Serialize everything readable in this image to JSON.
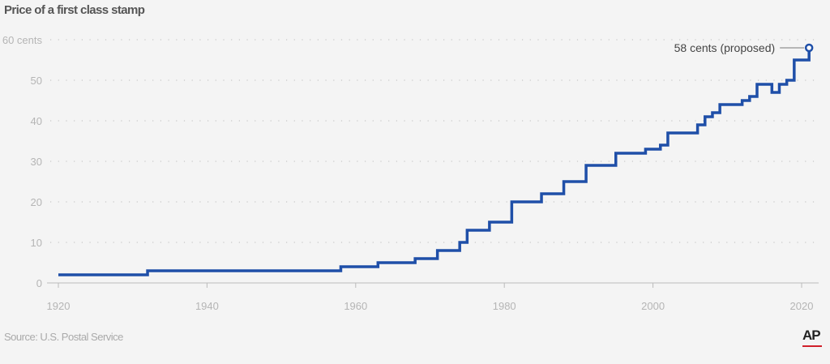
{
  "chart_data": {
    "type": "line",
    "step": true,
    "title": "Price of a first class stamp",
    "xlabel": "",
    "ylabel": "",
    "xlim": [
      1920,
      2021
    ],
    "ylim": [
      0,
      60
    ],
    "x_ticks": [
      1920,
      1940,
      1960,
      1980,
      2000,
      2020
    ],
    "x_tick_labels": [
      "1920",
      "1940",
      "1960",
      "1980",
      "2000",
      "2020"
    ],
    "y_ticks": [
      0,
      10,
      20,
      30,
      40,
      50,
      60
    ],
    "y_tick_labels": [
      "0",
      "10",
      "20",
      "30",
      "40",
      "50",
      "60 cents"
    ],
    "grid": "horizontal dotted",
    "color": "#1f4fa8",
    "series": [
      {
        "x": [
          1920,
          1932,
          1958,
          1963,
          1968,
          1971,
          1974,
          1975,
          1978,
          1981,
          1985,
          1988,
          1991,
          1995,
          1999,
          2001,
          2002,
          2006,
          2007,
          2008,
          2009,
          2012,
          2013,
          2014,
          2016,
          2017,
          2018,
          2019,
          2021
        ],
        "y": [
          2,
          3,
          4,
          5,
          6,
          8,
          10,
          13,
          15,
          20,
          22,
          25,
          29,
          32,
          33,
          34,
          37,
          39,
          41,
          42,
          44,
          45,
          46,
          49,
          47,
          49,
          50,
          55,
          58
        ]
      }
    ],
    "annotation": {
      "text": "58 cents (proposed)",
      "x": 2021,
      "y": 58
    }
  },
  "source": "Source: U.S. Postal Service",
  "logo": "AP"
}
